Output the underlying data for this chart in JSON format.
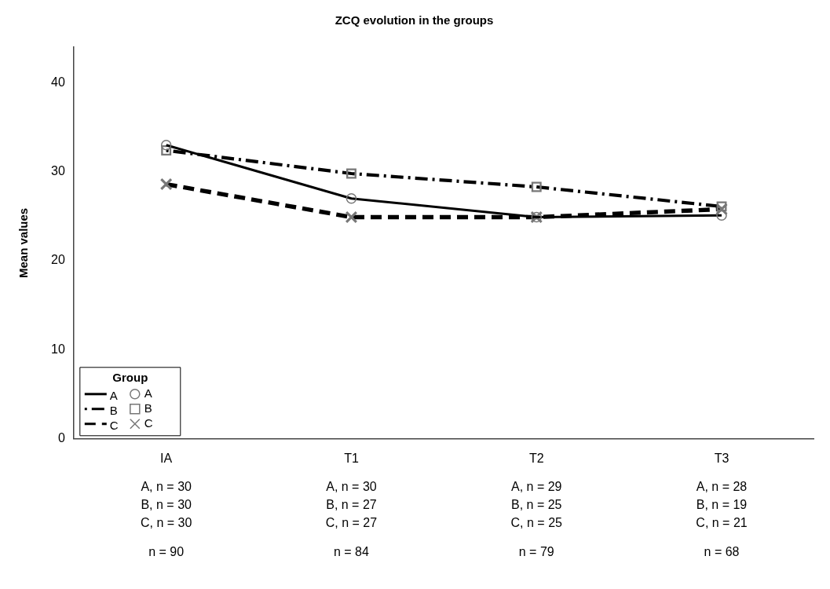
{
  "chart_data": {
    "type": "line",
    "title": "ZCQ evolution in the groups",
    "ylabel": "Mean values",
    "categories": [
      "IA",
      "T1",
      "T2",
      "T3"
    ],
    "series": [
      {
        "name": "A",
        "color": "#000000",
        "values": [
          33.0,
          27.0,
          24.9,
          25.1
        ],
        "marker": "circle",
        "line_style": "solid"
      },
      {
        "name": "B",
        "color": "#000000",
        "values": [
          32.4,
          29.8,
          28.3,
          26.1
        ],
        "marker": "square",
        "line_style": "dashdot"
      },
      {
        "name": "C",
        "color": "#000000",
        "values": [
          28.6,
          24.9,
          24.9,
          25.8
        ],
        "marker": "cross",
        "line_style": "dashed"
      }
    ],
    "ylim": [
      0,
      44
    ],
    "yticks": [
      0,
      10,
      20,
      30,
      40
    ],
    "grid": false,
    "legend": "bottom left",
    "legend_title": "Group",
    "annotations": [
      "A, n = 30",
      "B, n = 30",
      "C, n = 30",
      "n = 90",
      "A, n = 30",
      "B, n = 27",
      "C, n = 27",
      "n = 84",
      "A, n = 29",
      "B, n = 25",
      "C, n = 25",
      "n = 79",
      "A, n = 28",
      "B, n = 19",
      "C, n = 21",
      "n = 68"
    ]
  }
}
